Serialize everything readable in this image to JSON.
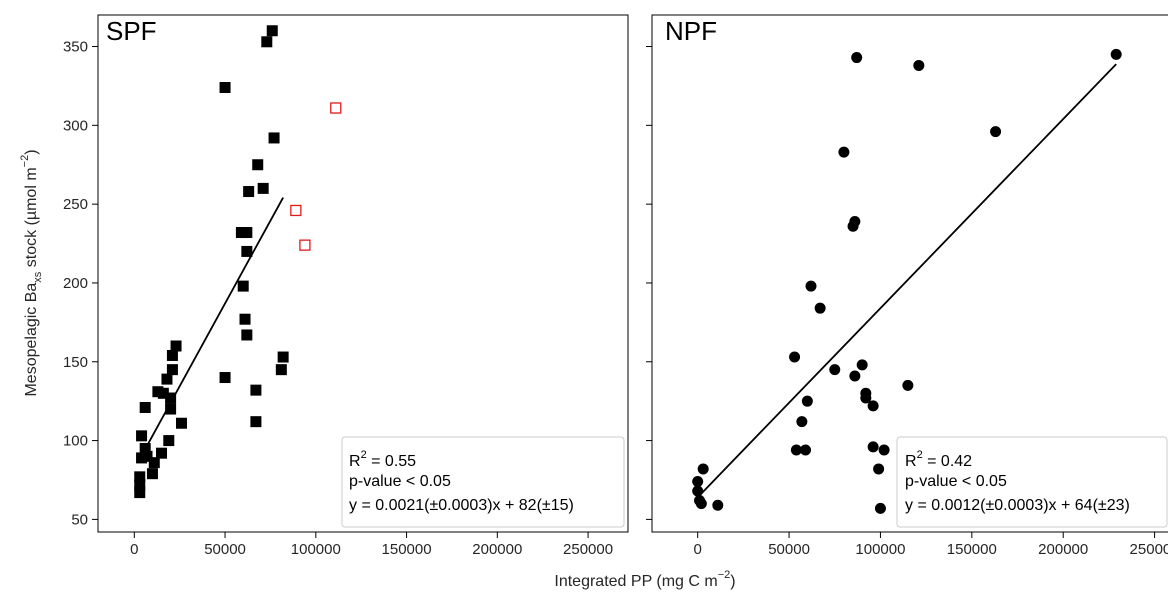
{
  "chart_data": [
    {
      "type": "scatter",
      "panel_title": "SPF",
      "xlim": [
        -20000,
        272000
      ],
      "ylim": [
        42,
        370
      ],
      "xticks": [
        0,
        50000,
        100000,
        150000,
        200000,
        250000
      ],
      "yticks": [
        50,
        100,
        150,
        200,
        250,
        300,
        350
      ],
      "ylabel_main": "Mesopelagic Ba",
      "ylabel_sub": "xs",
      "ylabel_rest": " stock (µmol m",
      "ylabel_sup": "−2",
      "ylabel_end": ")",
      "series": [
        {
          "marker": "filled-square",
          "color": "#000000",
          "points": [
            [
              3000,
              67
            ],
            [
              3000,
              72
            ],
            [
              3000,
              77
            ],
            [
              4000,
              89
            ],
            [
              4000,
              103
            ],
            [
              6000,
              95
            ],
            [
              6000,
              121
            ],
            [
              7000,
              90
            ],
            [
              10000,
              79
            ],
            [
              11000,
              86
            ],
            [
              13000,
              131
            ],
            [
              15000,
              92
            ],
            [
              16000,
              130
            ],
            [
              18000,
              139
            ],
            [
              19000,
              100
            ],
            [
              20000,
              120
            ],
            [
              20000,
              127
            ],
            [
              21000,
              145
            ],
            [
              21000,
              154
            ],
            [
              23000,
              160
            ],
            [
              26000,
              111
            ],
            [
              50000,
              140
            ],
            [
              50000,
              324
            ],
            [
              59000,
              232
            ],
            [
              60000,
              198
            ],
            [
              61000,
              177
            ],
            [
              62000,
              167
            ],
            [
              62000,
              220
            ],
            [
              62000,
              232
            ],
            [
              63000,
              258
            ],
            [
              67000,
              112
            ],
            [
              67000,
              132
            ],
            [
              68000,
              275
            ],
            [
              71000,
              260
            ],
            [
              73000,
              353
            ],
            [
              76000,
              360
            ],
            [
              77000,
              292
            ],
            [
              81000,
              145
            ],
            [
              82000,
              153
            ]
          ]
        },
        {
          "marker": "open-square",
          "color": "#e31a1c",
          "points": [
            [
              89000,
              246
            ],
            [
              94000,
              224
            ],
            [
              111000,
              311
            ]
          ]
        }
      ],
      "fit": {
        "x_start": 3000,
        "x_end": 82000,
        "slope": 0.0021,
        "intercept": 82
      },
      "stats": {
        "r2_base": "R",
        "r2_sup": "2",
        "r2_value": " = 0.55",
        "pvalue": "p-value < 0.05",
        "equation": "y = 0.0021(±0.0003)x + 82(±15)"
      }
    },
    {
      "type": "scatter",
      "panel_title": "NPF",
      "xlim": [
        -25000,
        265000
      ],
      "ylim": [
        42,
        370
      ],
      "xticks": [
        0,
        50000,
        100000,
        150000,
        200000,
        250000
      ],
      "series": [
        {
          "marker": "filled-circle",
          "color": "#000000",
          "points": [
            [
              0,
              68
            ],
            [
              0,
              74
            ],
            [
              1000,
              62
            ],
            [
              2000,
              60
            ],
            [
              3000,
              82
            ],
            [
              11000,
              59
            ],
            [
              53000,
              153
            ],
            [
              54000,
              94
            ],
            [
              57000,
              112
            ],
            [
              59000,
              94
            ],
            [
              60000,
              125
            ],
            [
              62000,
              198
            ],
            [
              67000,
              184
            ],
            [
              75000,
              145
            ],
            [
              80000,
              283
            ],
            [
              85000,
              236
            ],
            [
              86000,
              239
            ],
            [
              86000,
              141
            ],
            [
              87000,
              343
            ],
            [
              90000,
              148
            ],
            [
              92000,
              127
            ],
            [
              92000,
              130
            ],
            [
              96000,
              122
            ],
            [
              96000,
              96
            ],
            [
              99000,
              82
            ],
            [
              100000,
              57
            ],
            [
              102000,
              94
            ],
            [
              115000,
              135
            ],
            [
              121000,
              338
            ],
            [
              163000,
              296
            ],
            [
              229000,
              345
            ]
          ]
        }
      ],
      "fit": {
        "x_start": 0,
        "x_end": 229000,
        "slope": 0.0012,
        "intercept": 64
      },
      "stats": {
        "r2_base": "R",
        "r2_sup": "2",
        "r2_value": " = 0.42",
        "pvalue": "p-value < 0.05",
        "equation": "y = 0.0012(±0.0003)x + 64(±23)"
      }
    }
  ],
  "xlabel_main": "Integrated PP (mg C m",
  "xlabel_sup": "−2",
  "xlabel_end": ")"
}
